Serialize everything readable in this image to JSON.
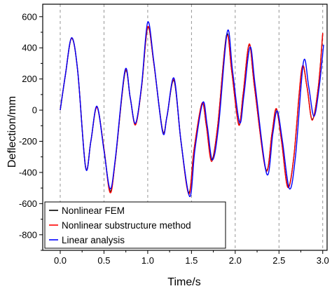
{
  "chart_data": {
    "type": "line",
    "title": "",
    "xlabel": "Time/s",
    "ylabel": "Deflection/mm",
    "xlim": [
      -0.2,
      3.05
    ],
    "ylim": [
      -900,
      680
    ],
    "xticks": [
      0.0,
      0.5,
      1.0,
      1.5,
      2.0,
      2.5,
      3.0
    ],
    "xtick_labels": [
      "0.0",
      "0.5",
      "1.0",
      "1.5",
      "2.0",
      "2.5",
      "3.0"
    ],
    "yticks": [
      -800,
      -600,
      -400,
      -200,
      0,
      200,
      400,
      600
    ],
    "ytick_labels": [
      "-800",
      "-600",
      "-400",
      "-200",
      "0",
      "200",
      "400",
      "600"
    ],
    "grid": "vertical dashed lines at x ticks",
    "legend_position": "bottom-left",
    "series": [
      {
        "name": "Nonlinear FEM",
        "color": "#000000",
        "points": [
          [
            0.0,
            0
          ],
          [
            0.06,
            230
          ],
          [
            0.13,
            460
          ],
          [
            0.2,
            250
          ],
          [
            0.29,
            -365
          ],
          [
            0.35,
            -200
          ],
          [
            0.42,
            20
          ],
          [
            0.5,
            -250
          ],
          [
            0.57,
            -520
          ],
          [
            0.63,
            -320
          ],
          [
            0.74,
            240
          ],
          [
            0.8,
            80
          ],
          [
            0.86,
            -90
          ],
          [
            0.93,
            150
          ],
          [
            1.0,
            530
          ],
          [
            1.07,
            300
          ],
          [
            1.17,
            -130
          ],
          [
            1.22,
            -40
          ],
          [
            1.3,
            190
          ],
          [
            1.38,
            -200
          ],
          [
            1.47,
            -530
          ],
          [
            1.53,
            -250
          ],
          [
            1.62,
            40
          ],
          [
            1.67,
            -100
          ],
          [
            1.73,
            -320
          ],
          [
            1.8,
            -100
          ],
          [
            1.9,
            480
          ],
          [
            1.96,
            250
          ],
          [
            2.04,
            -90
          ],
          [
            2.09,
            100
          ],
          [
            2.16,
            420
          ],
          [
            2.22,
            150
          ],
          [
            2.35,
            -380
          ],
          [
            2.42,
            -150
          ],
          [
            2.47,
            5
          ],
          [
            2.53,
            -200
          ],
          [
            2.6,
            -490
          ],
          [
            2.67,
            -300
          ],
          [
            2.76,
            260
          ],
          [
            2.82,
            150
          ],
          [
            2.88,
            -60
          ],
          [
            2.95,
            150
          ],
          [
            3.0,
            490
          ]
        ]
      },
      {
        "name": "Nonlinear substructure method",
        "color": "#ff0000",
        "points": [
          [
            0.0,
            0
          ],
          [
            0.06,
            230
          ],
          [
            0.13,
            462
          ],
          [
            0.2,
            250
          ],
          [
            0.29,
            -367
          ],
          [
            0.35,
            -200
          ],
          [
            0.42,
            18
          ],
          [
            0.5,
            -250
          ],
          [
            0.57,
            -530
          ],
          [
            0.63,
            -320
          ],
          [
            0.74,
            245
          ],
          [
            0.8,
            80
          ],
          [
            0.86,
            -95
          ],
          [
            0.93,
            150
          ],
          [
            1.0,
            535
          ],
          [
            1.07,
            300
          ],
          [
            1.17,
            -135
          ],
          [
            1.22,
            -40
          ],
          [
            1.3,
            195
          ],
          [
            1.38,
            -200
          ],
          [
            1.47,
            -540
          ],
          [
            1.53,
            -250
          ],
          [
            1.62,
            45
          ],
          [
            1.67,
            -100
          ],
          [
            1.73,
            -330
          ],
          [
            1.8,
            -100
          ],
          [
            1.9,
            470
          ],
          [
            1.96,
            250
          ],
          [
            2.04,
            -95
          ],
          [
            2.09,
            100
          ],
          [
            2.16,
            425
          ],
          [
            2.22,
            150
          ],
          [
            2.35,
            -385
          ],
          [
            2.42,
            -150
          ],
          [
            2.47,
            10
          ],
          [
            2.53,
            -200
          ],
          [
            2.6,
            -495
          ],
          [
            2.67,
            -300
          ],
          [
            2.76,
            265
          ],
          [
            2.82,
            150
          ],
          [
            2.88,
            -65
          ],
          [
            2.95,
            150
          ],
          [
            3.0,
            495
          ]
        ]
      },
      {
        "name": "Linear analysis",
        "color": "#0000ff",
        "points": [
          [
            0.0,
            0
          ],
          [
            0.06,
            230
          ],
          [
            0.13,
            465
          ],
          [
            0.2,
            250
          ],
          [
            0.29,
            -370
          ],
          [
            0.35,
            -200
          ],
          [
            0.42,
            25
          ],
          [
            0.5,
            -260
          ],
          [
            0.57,
            -505
          ],
          [
            0.63,
            -310
          ],
          [
            0.74,
            255
          ],
          [
            0.8,
            80
          ],
          [
            0.86,
            -85
          ],
          [
            0.93,
            160
          ],
          [
            1.0,
            565
          ],
          [
            1.07,
            310
          ],
          [
            1.17,
            -140
          ],
          [
            1.22,
            -40
          ],
          [
            1.3,
            205
          ],
          [
            1.38,
            -200
          ],
          [
            1.48,
            -555
          ],
          [
            1.54,
            -250
          ],
          [
            1.63,
            50
          ],
          [
            1.68,
            -100
          ],
          [
            1.74,
            -320
          ],
          [
            1.81,
            -100
          ],
          [
            1.91,
            505
          ],
          [
            1.97,
            250
          ],
          [
            2.05,
            -80
          ],
          [
            2.1,
            100
          ],
          [
            2.17,
            405
          ],
          [
            2.23,
            150
          ],
          [
            2.36,
            -410
          ],
          [
            2.43,
            -150
          ],
          [
            2.48,
            -5
          ],
          [
            2.54,
            -200
          ],
          [
            2.62,
            -505
          ],
          [
            2.69,
            -290
          ],
          [
            2.78,
            310
          ],
          [
            2.84,
            150
          ],
          [
            2.9,
            -40
          ],
          [
            2.96,
            150
          ],
          [
            3.01,
            420
          ]
        ]
      }
    ]
  }
}
